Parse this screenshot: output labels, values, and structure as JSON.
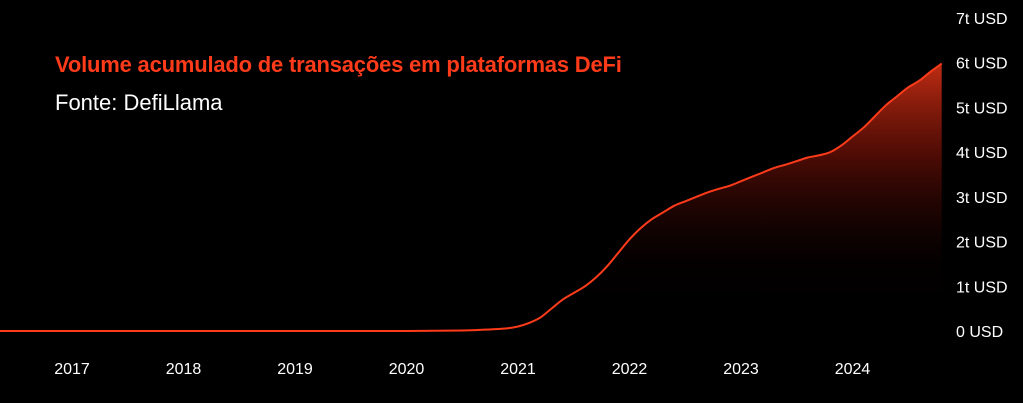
{
  "colors": {
    "background": "#000000",
    "accent": "#ff3b1a",
    "text": "#ffffff"
  },
  "chart_data": {
    "type": "area",
    "title": "Volume acumulado de transações em plataformas DeFi",
    "subtitle": "Fonte: DefiLlama",
    "xlabel": "",
    "ylabel": "",
    "ylim": [
      0,
      7
    ],
    "y_unit": "t USD",
    "y_tick_labels": [
      "0 USD",
      "1t USD",
      "2t USD",
      "3t USD",
      "4t USD",
      "5t USD",
      "6t USD",
      "7t USD"
    ],
    "x_tick_labels": [
      "2017",
      "2018",
      "2019",
      "2020",
      "2021",
      "2022",
      "2023",
      "2024"
    ],
    "grid": false,
    "legend": "none",
    "series": [
      {
        "x": [
          2016.4,
          2017.0,
          2018.0,
          2019.0,
          2020.0,
          2020.5,
          2020.7,
          2020.9,
          2021.0,
          2021.1,
          2021.2,
          2021.3,
          2021.4,
          2021.5,
          2021.6,
          2021.7,
          2021.8,
          2021.9,
          2022.0,
          2022.1,
          2022.2,
          2022.3,
          2022.4,
          2022.5,
          2022.6,
          2022.7,
          2022.8,
          2022.9,
          2023.0,
          2023.1,
          2023.2,
          2023.3,
          2023.4,
          2023.5,
          2023.6,
          2023.7,
          2023.8,
          2023.9,
          2024.0,
          2024.1,
          2024.2,
          2024.3,
          2024.4,
          2024.5,
          2024.6,
          2024.7,
          2024.8
        ],
        "values": [
          0,
          0,
          0,
          0,
          0,
          0.01,
          0.03,
          0.06,
          0.1,
          0.18,
          0.3,
          0.5,
          0.7,
          0.85,
          1.0,
          1.2,
          1.45,
          1.75,
          2.05,
          2.3,
          2.5,
          2.65,
          2.8,
          2.9,
          3.0,
          3.1,
          3.18,
          3.25,
          3.35,
          3.45,
          3.55,
          3.65,
          3.72,
          3.8,
          3.88,
          3.93,
          4.0,
          4.15,
          4.35,
          4.55,
          4.8,
          5.05,
          5.25,
          5.45,
          5.6,
          5.8,
          5.98
        ]
      }
    ]
  }
}
